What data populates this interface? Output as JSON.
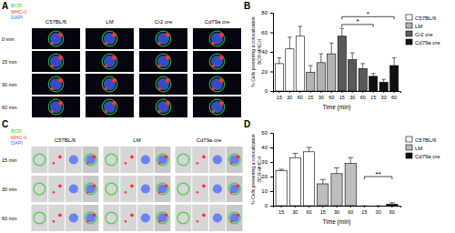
{
  "figure": {
    "letters": [
      "A",
      "B",
      "C",
      "D"
    ],
    "image_panels": [
      {
        "channels": [
          {
            "name": "BCR",
            "color": "#33cc33"
          },
          {
            "name": "MHC-II",
            "color": "#ff3333"
          },
          {
            "name": "DAPI",
            "color": "#4466ff"
          }
        ],
        "columns": [
          "C57BL/6",
          "LM",
          "Cr2 cre",
          "Cd79a cre"
        ],
        "rows": [
          "0 min",
          "15 min",
          "30 min",
          "60 min"
        ]
      },
      {
        "channels": [
          {
            "name": "BCR",
            "color": "#33cc33"
          },
          {
            "name": "MHC-II",
            "color": "#ff3333"
          },
          {
            "name": "DAPI",
            "color": "#4466ff"
          }
        ],
        "columns": [
          "C57BL/6",
          "LM",
          "Cd79a cre"
        ],
        "rows": [
          "15 min",
          "30 min",
          "60 min"
        ]
      }
    ]
  },
  "chart_data": [
    {
      "type": "bar",
      "y_label": [
        "% Cells presenting a colocalization",
        "BCR-MHC-II"
      ],
      "x_label": "Time (min)",
      "categories": [
        "15",
        "30",
        "60",
        "15",
        "30",
        "60",
        "15",
        "30",
        "60",
        "15",
        "30",
        "60"
      ],
      "series": [
        {
          "name": "C57BL/6",
          "color": "#ffffff",
          "values": [
            28,
            43,
            56,
            null,
            null,
            null,
            null,
            null,
            null,
            null,
            null,
            null
          ],
          "errors": [
            6,
            12,
            10,
            null,
            null,
            null,
            null,
            null,
            null,
            null,
            null,
            null
          ]
        },
        {
          "name": "LM",
          "color": "#b3b3b3",
          "values": [
            null,
            null,
            null,
            19,
            29,
            38,
            null,
            null,
            null,
            null,
            null,
            null
          ],
          "errors": [
            null,
            null,
            null,
            7,
            9,
            11,
            null,
            null,
            null,
            null,
            null,
            null
          ]
        },
        {
          "name": "Cr2 cre",
          "color": "#595959",
          "values": [
            null,
            null,
            null,
            null,
            null,
            null,
            56,
            32,
            23,
            null,
            null,
            null
          ],
          "errors": [
            null,
            null,
            null,
            null,
            null,
            null,
            8,
            7,
            5,
            null,
            null,
            null
          ]
        },
        {
          "name": "Cd79a cre",
          "color": "#111111",
          "values": [
            null,
            null,
            null,
            null,
            null,
            null,
            null,
            null,
            null,
            15,
            9,
            26
          ],
          "errors": [
            null,
            null,
            null,
            null,
            null,
            null,
            null,
            null,
            null,
            3,
            3,
            8
          ]
        }
      ],
      "annotations": [
        {
          "text": "*",
          "from": 6,
          "to": 11,
          "y": 76
        },
        {
          "text": "*",
          "from": 6,
          "to": 9,
          "y": 68
        }
      ],
      "ylim": [
        0,
        80
      ],
      "yticks": [
        0,
        20,
        40,
        60,
        80
      ],
      "legend": "right"
    },
    {
      "type": "bar",
      "y_label": [
        "% Cells presenting a colocalization",
        "BCR-MHC-II"
      ],
      "x_label": "Time (min)",
      "categories": [
        "15",
        "30",
        "60",
        "15",
        "30",
        "60",
        "15",
        "30",
        "60"
      ],
      "series": [
        {
          "name": "C57BL/6",
          "color": "#ffffff",
          "values": [
            24,
            33,
            37,
            null,
            null,
            null,
            null,
            null,
            null
          ],
          "errors": [
            1,
            3,
            3,
            null,
            null,
            null,
            null,
            null,
            null
          ]
        },
        {
          "name": "LM",
          "color": "#bdbdbd",
          "values": [
            null,
            null,
            null,
            15,
            22,
            29,
            null,
            null,
            null
          ],
          "errors": [
            null,
            null,
            null,
            3,
            4,
            4,
            null,
            null,
            null
          ]
        },
        {
          "name": "Cd79a cre",
          "color": "#111111",
          "values": [
            null,
            null,
            null,
            null,
            null,
            null,
            0,
            0,
            1
          ],
          "errors": [
            null,
            null,
            null,
            null,
            null,
            null,
            0,
            0,
            1
          ]
        }
      ],
      "annotations": [
        {
          "text": "**",
          "from": 6,
          "to": 8,
          "y": 20
        }
      ],
      "ylim": [
        0,
        50
      ],
      "yticks": [
        0,
        10,
        20,
        30,
        40,
        50
      ],
      "legend": "right"
    }
  ]
}
